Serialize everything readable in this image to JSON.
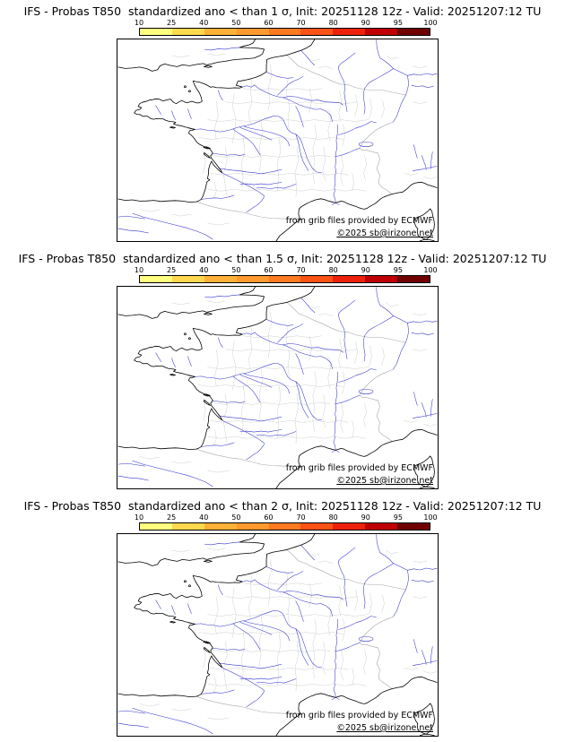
{
  "panels": [
    {
      "title": "IFS - Probas T850  standardized ano < than 1 σ, Init: 20251128 12z - Valid: 20251207:12 TU",
      "credits": {
        "line1": "from grib files provided by ECMWF",
        "line2": "©2025 sb@irizone.net"
      }
    },
    {
      "title": "IFS - Probas T850  standardized ano < than 1.5 σ, Init: 20251128 12z - Valid: 20251207:12 TU",
      "credits": {
        "line1": "from grib files provided by ECMWF",
        "line2": "©2025 sb@irizone.net"
      }
    },
    {
      "title": "IFS - Probas T850  standardized ano < than 2 σ, Init: 20251128 12z - Valid: 20251207:12 TU",
      "credits": {
        "line1": "from grib files provided by ECMWF",
        "line2": "©2025 sb@irizone.net"
      }
    }
  ],
  "colorbar": {
    "tick_labels": [
      "10",
      "25",
      "40",
      "50",
      "60",
      "70",
      "80",
      "90",
      "95",
      "100"
    ],
    "segment_colors": [
      "#ffff80",
      "#ffd94d",
      "#ffb037",
      "#ff9a2e",
      "#ff7a21",
      "#fb5316",
      "#ee220c",
      "#c00000",
      "#700000"
    ]
  },
  "chart_data": [
    {
      "type": "heatmap",
      "title": "IFS - Probas T850  standardized ano < than 1 σ, Init: 20251128 12z - Valid: 20251207:12 TU",
      "map_region": "France",
      "legend": {
        "ticks": [
          10,
          25,
          40,
          50,
          60,
          70,
          80,
          90,
          95,
          100
        ],
        "position": "top",
        "unit": "%"
      },
      "shaded_values": []
    },
    {
      "type": "heatmap",
      "title": "IFS - Probas T850  standardized ano < than 1.5 σ, Init: 20251128 12z - Valid: 20251207:12 TU",
      "map_region": "France",
      "legend": {
        "ticks": [
          10,
          25,
          40,
          50,
          60,
          70,
          80,
          90,
          95,
          100
        ],
        "position": "top",
        "unit": "%"
      },
      "shaded_values": []
    },
    {
      "type": "heatmap",
      "title": "IFS - Probas T850  standardized ano < than 2 σ, Init: 20251128 12z - Valid: 20251207:12 TU",
      "map_region": "France",
      "legend": {
        "ticks": [
          10,
          25,
          40,
          50,
          60,
          70,
          80,
          90,
          95,
          100
        ],
        "position": "top",
        "unit": "%"
      },
      "shaded_values": []
    }
  ]
}
